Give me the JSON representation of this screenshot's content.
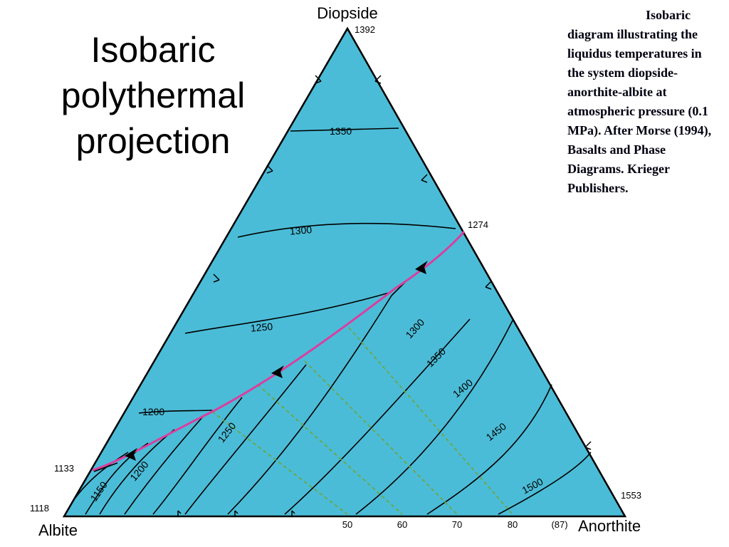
{
  "slide": {
    "title": "Isobaric polythermal projection",
    "caption": "Isobaric diagram illustrating the liquidus temperatures in the system diopside-anorthite-albite at atmospheric pressure (0.1 MPa). After Morse (1994), Basalts and Phase Diagrams. Krieger Publishers."
  },
  "diagram": {
    "fill_color": "#4bbcd7",
    "cotectic_color": "#d93fa0",
    "tieline_color": "#6aa84f",
    "apices": {
      "top": {
        "name": "Diopside",
        "temp": "1392"
      },
      "left": {
        "name": "Albite",
        "temp": "1118"
      },
      "right": {
        "name": "Anorthite",
        "temp": "1553"
      }
    },
    "edge_temps": {
      "cotectic_right": "1274",
      "cotectic_left": "1133"
    },
    "diopside_field_isotherms": [
      "1350",
      "1300",
      "1250",
      "1200"
    ],
    "plagioclase_field_isotherms": [
      "1150",
      "1200",
      "1250",
      "1300",
      "1350",
      "1400",
      "1450",
      "1500"
    ],
    "base_ticks": [
      "50",
      "60",
      "70",
      "80",
      "(87)"
    ]
  }
}
